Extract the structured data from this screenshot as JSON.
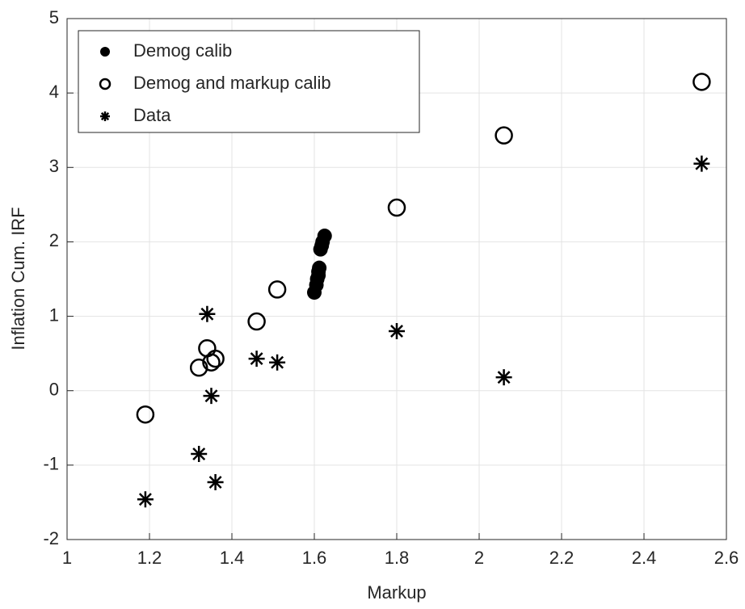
{
  "chart_data": {
    "type": "scatter",
    "x_label": "Markup",
    "y_label": "Inflation Cum. IRF",
    "xlim": [
      1,
      2.6
    ],
    "ylim": [
      -2,
      5
    ],
    "xticks": [
      1,
      1.2,
      1.4,
      1.6,
      1.8,
      2,
      2.2,
      2.4,
      2.6
    ],
    "yticks": [
      -2,
      -1,
      0,
      1,
      2,
      3,
      4,
      5
    ],
    "grid": true,
    "legend": "upper-left",
    "series": [
      {
        "name": "Demog calib",
        "color": "#000000",
        "marker": "filled",
        "x": [
          1.6,
          1.605,
          1.607,
          1.61,
          1.612,
          1.61,
          1.615,
          1.618,
          1.62,
          1.625
        ],
        "y": [
          1.32,
          1.42,
          1.5,
          1.55,
          1.65,
          1.6,
          1.9,
          1.95,
          2.0,
          2.08
        ]
      },
      {
        "name": "Demog and markup calib",
        "color": "#000000",
        "marker": "open",
        "x": [
          1.19,
          1.32,
          1.34,
          1.35,
          1.36,
          1.46,
          1.51,
          1.8,
          2.06,
          2.54
        ],
        "y": [
          -0.32,
          0.31,
          0.57,
          0.38,
          0.43,
          0.93,
          1.36,
          2.46,
          3.43,
          4.15
        ]
      },
      {
        "name": "Data",
        "color": "#000000",
        "marker": "star",
        "x": [
          1.19,
          1.32,
          1.34,
          1.35,
          1.36,
          1.46,
          1.51,
          1.8,
          2.06,
          2.54
        ],
        "y": [
          -1.46,
          -0.85,
          1.03,
          -0.07,
          -1.23,
          0.43,
          0.38,
          0.8,
          0.18,
          3.05
        ]
      }
    ]
  }
}
